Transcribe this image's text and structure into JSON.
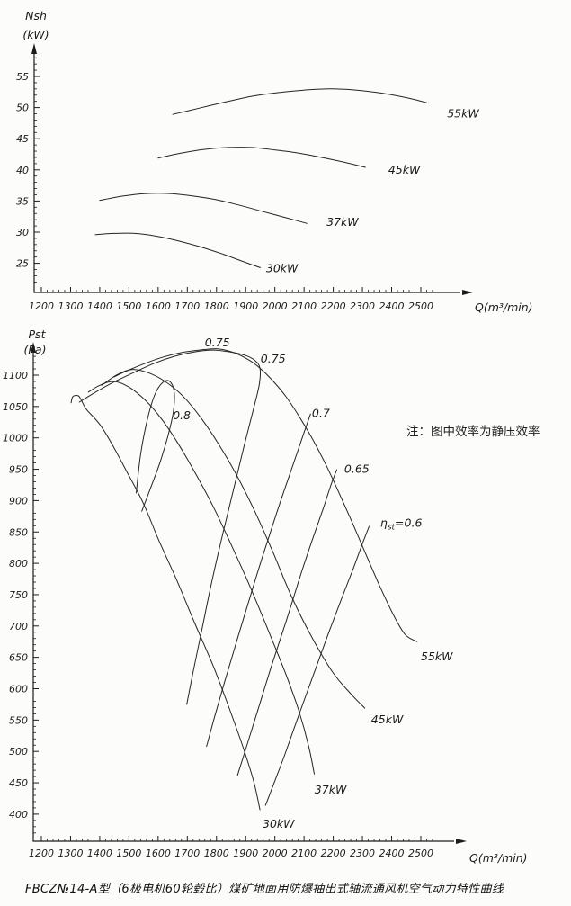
{
  "page": {
    "background": "#fcfcfa",
    "ink_color": "#1c1c1c",
    "caption": "FBCZ№14-A型（6极电机60轮毂比）煤矿地面用防爆抽出式轴流通风机空气动力特性曲线",
    "note": "注：图中效率为静压效率"
  },
  "chart_data": [
    {
      "id": "power",
      "type": "line",
      "xlabel": "Q(m³/min)",
      "ylabel": "Nsh",
      "ylabel_unit": "(kW)",
      "xlim": [
        1200,
        2560
      ],
      "ylim": [
        20,
        59
      ],
      "x_ticks": [
        1200,
        1300,
        1400,
        1500,
        1600,
        1700,
        1800,
        1900,
        2000,
        2100,
        2200,
        2300,
        2400,
        2500
      ],
      "x_minor_step": 20,
      "y_ticks": [
        25,
        30,
        35,
        40,
        45,
        50,
        55
      ],
      "y_minor_step": 1,
      "grid": false,
      "legend": "labels at right end of each curve",
      "series": [
        {
          "name": "30kW",
          "label": "30kW",
          "label_at": [
            1970,
            23.6
          ],
          "points": [
            [
              1385,
              29.6
            ],
            [
              1450,
              29.8
            ],
            [
              1520,
              29.8
            ],
            [
              1590,
              29.4
            ],
            [
              1660,
              28.7
            ],
            [
              1740,
              27.7
            ],
            [
              1820,
              26.5
            ],
            [
              1890,
              25.3
            ],
            [
              1950,
              24.3
            ]
          ]
        },
        {
          "name": "37kW",
          "label": "37kW",
          "label_at": [
            2177,
            31.0
          ],
          "points": [
            [
              1400,
              35.1
            ],
            [
              1480,
              35.8
            ],
            [
              1560,
              36.2
            ],
            [
              1640,
              36.2
            ],
            [
              1720,
              35.8
            ],
            [
              1800,
              35.2
            ],
            [
              1880,
              34.3
            ],
            [
              1960,
              33.3
            ],
            [
              2040,
              32.3
            ],
            [
              2110,
              31.4
            ]
          ]
        },
        {
          "name": "45kW",
          "label": "45kW",
          "label_at": [
            2389,
            39.4
          ],
          "points": [
            [
              1600,
              41.9
            ],
            [
              1680,
              42.7
            ],
            [
              1760,
              43.3
            ],
            [
              1840,
              43.6
            ],
            [
              1920,
              43.6
            ],
            [
              2000,
              43.2
            ],
            [
              2080,
              42.7
            ],
            [
              2160,
              42.0
            ],
            [
              2240,
              41.2
            ],
            [
              2310,
              40.4
            ]
          ]
        },
        {
          "name": "55kW",
          "label": "55kW",
          "label_at": [
            2590,
            48.4
          ],
          "points": [
            [
              1650,
              48.9
            ],
            [
              1740,
              49.9
            ],
            [
              1830,
              50.9
            ],
            [
              1920,
              51.8
            ],
            [
              2010,
              52.4
            ],
            [
              2100,
              52.8
            ],
            [
              2190,
              53.0
            ],
            [
              2280,
              52.8
            ],
            [
              2370,
              52.3
            ],
            [
              2460,
              51.5
            ],
            [
              2520,
              50.8
            ]
          ]
        }
      ]
    },
    {
      "id": "pressure",
      "type": "line",
      "xlabel": "Q(m³/min)",
      "ylabel": "Pst",
      "ylabel_unit": "(Pa)",
      "xlim": [
        1200,
        2560
      ],
      "ylim": [
        355,
        1150
      ],
      "x_ticks": [
        1200,
        1300,
        1400,
        1500,
        1600,
        1700,
        1800,
        1900,
        2000,
        2100,
        2200,
        2300,
        2400,
        2500
      ],
      "x_minor_step": 20,
      "y_ticks": [
        400,
        450,
        500,
        550,
        600,
        650,
        700,
        750,
        800,
        850,
        900,
        950,
        1000,
        1050,
        1100
      ],
      "y_minor_step": 10,
      "grid": false,
      "series": [
        {
          "name": "30kW",
          "label": "30kW",
          "label_at": [
            1958,
            378
          ],
          "points": [
            [
              1302,
              1056
            ],
            [
              1308,
              1066
            ],
            [
              1327,
              1067
            ],
            [
              1339,
              1058
            ],
            [
              1355,
              1045
            ],
            [
              1401,
              1021
            ],
            [
              1448,
              985
            ],
            [
              1494,
              945
            ],
            [
              1550,
              895
            ],
            [
              1602,
              837
            ],
            [
              1664,
              773
            ],
            [
              1726,
              704
            ],
            [
              1788,
              637
            ],
            [
              1841,
              572
            ],
            [
              1890,
              508
            ],
            [
              1927,
              453
            ],
            [
              1949,
              407
            ]
          ]
        },
        {
          "name": "37kW",
          "label": "37kW",
          "label_at": [
            2136,
            433
          ],
          "points": [
            [
              1361,
              1073
            ],
            [
              1401,
              1084
            ],
            [
              1448,
              1090
            ],
            [
              1500,
              1081
            ],
            [
              1556,
              1060
            ],
            [
              1612,
              1030
            ],
            [
              1667,
              992
            ],
            [
              1726,
              945
            ],
            [
              1788,
              891
            ],
            [
              1850,
              830
            ],
            [
              1912,
              766
            ],
            [
              1974,
              697
            ],
            [
              2036,
              625
            ],
            [
              2082,
              565
            ],
            [
              2116,
              508
            ],
            [
              2135,
              464
            ]
          ]
        },
        {
          "name": "45kW",
          "label": "45kW",
          "label_at": [
            2330,
            545
          ],
          "points": [
            [
              1407,
              1084
            ],
            [
              1457,
              1100
            ],
            [
              1509,
              1109
            ],
            [
              1565,
              1104
            ],
            [
              1624,
              1090
            ],
            [
              1686,
              1066
            ],
            [
              1748,
              1031
            ],
            [
              1810,
              988
            ],
            [
              1872,
              938
            ],
            [
              1934,
              880
            ],
            [
              1995,
              816
            ],
            [
              2057,
              747
            ],
            [
              2129,
              680
            ],
            [
              2200,
              625
            ],
            [
              2262,
              591
            ],
            [
              2308,
              569
            ]
          ]
        },
        {
          "name": "55kW",
          "label": "55kW",
          "label_at": [
            2500,
            645
          ],
          "points": [
            [
              1448,
              1097
            ],
            [
              1494,
              1107
            ],
            [
              1556,
              1119
            ],
            [
              1618,
              1129
            ],
            [
              1680,
              1136
            ],
            [
              1742,
              1140
            ],
            [
              1804,
              1142
            ],
            [
              1859,
              1136
            ],
            [
              1912,
              1124
            ],
            [
              1949,
              1111
            ],
            [
              1989,
              1093
            ],
            [
              2036,
              1067
            ],
            [
              2082,
              1035
            ],
            [
              2129,
              998
            ],
            [
              2175,
              957
            ],
            [
              2221,
              911
            ],
            [
              2268,
              862
            ],
            [
              2314,
              812
            ],
            [
              2360,
              763
            ],
            [
              2407,
              717
            ],
            [
              2447,
              686
            ],
            [
              2487,
              675
            ]
          ]
        }
      ],
      "contours": [
        {
          "name": "eta-0.8",
          "labels": [
            {
              "text": "0.8",
              "at": [
                1650,
                1030
              ]
            }
          ],
          "points": [
            [
              1525,
              912
            ],
            [
              1540,
              974
            ],
            [
              1562,
              1027
            ],
            [
              1587,
              1067
            ],
            [
              1615,
              1088
            ],
            [
              1640,
              1090
            ],
            [
              1655,
              1073
            ],
            [
              1652,
              1041
            ],
            [
              1633,
              1002
            ],
            [
              1605,
              959
            ],
            [
              1571,
              916
            ],
            [
              1544,
              883
            ]
          ]
        },
        {
          "name": "eta-0.75",
          "labels": [
            {
              "text": "0.75",
              "at": [
                1760,
                1146
              ]
            },
            {
              "text": "0.75",
              "at": [
                1951,
                1120
              ]
            }
          ],
          "points": [
            [
              1330,
              1057
            ],
            [
              1386,
              1073
            ],
            [
              1448,
              1089
            ],
            [
              1516,
              1104
            ],
            [
              1587,
              1119
            ],
            [
              1655,
              1130
            ],
            [
              1723,
              1137
            ],
            [
              1788,
              1140
            ],
            [
              1847,
              1137
            ],
            [
              1896,
              1132
            ],
            [
              1930,
              1124
            ],
            [
              1949,
              1111
            ],
            [
              1946,
              1084
            ],
            [
              1924,
              1041
            ],
            [
              1893,
              984
            ],
            [
              1859,
              919
            ],
            [
              1822,
              848
            ],
            [
              1785,
              773
            ],
            [
              1751,
              697
            ],
            [
              1720,
              627
            ],
            [
              1698,
              575
            ]
          ]
        },
        {
          "name": "eta-0.7",
          "labels": [
            {
              "text": "0.7",
              "at": [
                2127,
                1033
              ]
            }
          ],
          "points": [
            [
              2122,
              1038
            ],
            [
              2107,
              1018
            ],
            [
              2082,
              984
            ],
            [
              2048,
              938
            ],
            [
              2008,
              883
            ],
            [
              1964,
              820
            ],
            [
              1918,
              751
            ],
            [
              1872,
              680
            ],
            [
              1828,
              611
            ],
            [
              1791,
              551
            ],
            [
              1766,
              508
            ]
          ]
        },
        {
          "name": "eta-0.65",
          "labels": [
            {
              "text": "0.65",
              "at": [
                2238,
                944
              ]
            }
          ],
          "points": [
            [
              2212,
              949
            ],
            [
              2193,
              926
            ],
            [
              2166,
              888
            ],
            [
              2128,
              837
            ],
            [
              2085,
              777
            ],
            [
              2039,
              708
            ],
            [
              1989,
              637
            ],
            [
              1943,
              568
            ],
            [
              1903,
              508
            ],
            [
              1872,
              462
            ]
          ]
        },
        {
          "name": "eta-0.6",
          "labels": [
            {
              "text": "η_st=0.6",
              "at": [
                2361,
                858
              ]
            }
          ],
          "points": [
            [
              2323,
              859
            ],
            [
              2299,
              830
            ],
            [
              2268,
              791
            ],
            [
              2228,
              743
            ],
            [
              2181,
              685
            ],
            [
              2132,
              622
            ],
            [
              2082,
              558
            ],
            [
              2035,
              496
            ],
            [
              1995,
              447
            ],
            [
              1968,
              414
            ]
          ]
        }
      ]
    }
  ]
}
